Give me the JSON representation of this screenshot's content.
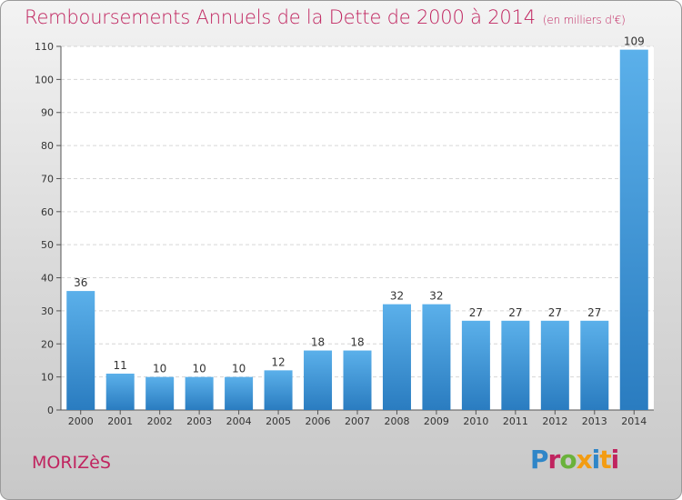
{
  "title": "Remboursements Annuels de la Dette de 2000 à 2014",
  "unit": "(en milliers d'€)",
  "city": "MORIZèS",
  "logo": {
    "text": "Proxiti",
    "colors": [
      "#2f86c8",
      "#6ab23b",
      "#f39c12",
      "#c0245f"
    ]
  },
  "colors": {
    "title": "#c0245f",
    "bar_light": "#5bb0ea",
    "bar_dark": "#2a7cc0"
  },
  "chart_data": {
    "type": "bar",
    "categories": [
      "2000",
      "2001",
      "2002",
      "2003",
      "2004",
      "2005",
      "2006",
      "2007",
      "2008",
      "2009",
      "2010",
      "2011",
      "2012",
      "2013",
      "2014"
    ],
    "values": [
      36,
      11,
      10,
      10,
      10,
      12,
      18,
      18,
      32,
      32,
      27,
      27,
      27,
      27,
      109
    ],
    "ylim": [
      0,
      110
    ],
    "yticks": [
      0,
      10,
      20,
      30,
      40,
      50,
      60,
      70,
      80,
      90,
      100,
      110
    ],
    "grid": true
  }
}
